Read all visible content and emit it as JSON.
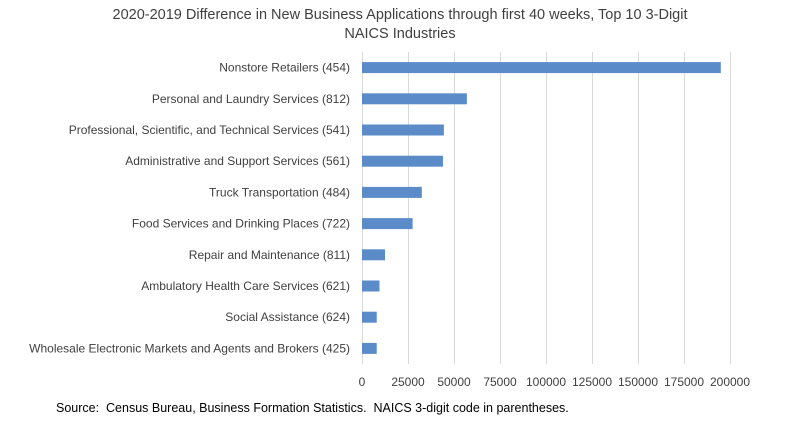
{
  "chart_data": {
    "type": "bar",
    "orientation": "horizontal",
    "title": "2020-2019 Difference in New Business Applications through first 40 weeks, Top 10 3-Digit NAICS Industries",
    "title_lines": [
      "2020-2019 Difference in New Business Applications through first 40 weeks, Top 10 3-Digit",
      "NAICS Industries"
    ],
    "categories": [
      "Nonstore Retailers (454)",
      "Personal and Laundry Services (812)",
      "Professional, Scientific, and Technical Services (541)",
      "Administrative and Support Services (561)",
      "Truck Transportation (484)",
      "Food Services and Drinking Places (722)",
      "Repair and Maintenance (811)",
      "Ambulatory Health Care Services (621)",
      "Social Assistance (624)",
      "Wholesale Electronic Markets and Agents and Brokers (425)"
    ],
    "values": [
      195000,
      57000,
      44500,
      44000,
      32500,
      27500,
      12500,
      9500,
      8000,
      8000
    ],
    "xlim": [
      0,
      200000
    ],
    "xticks": [
      0,
      25000,
      50000,
      75000,
      100000,
      125000,
      150000,
      175000,
      200000
    ],
    "grid": "vertical",
    "bar_color": "#5b8cc9",
    "legend": "none"
  },
  "source_note": "Source:  Census Bureau, Business Formation Statistics.  NAICS 3-digit code in parentheses."
}
